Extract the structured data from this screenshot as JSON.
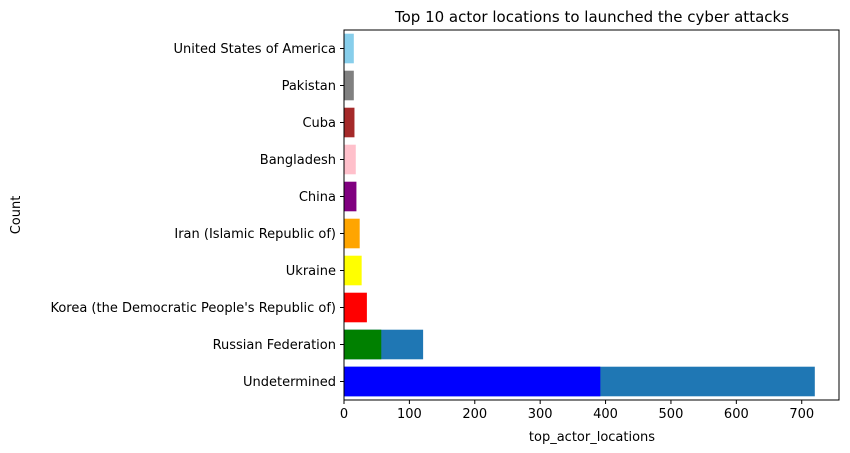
{
  "chart_data": {
    "type": "bar",
    "orientation": "horizontal",
    "title": "Top 10 actor locations to launched the cyber attacks",
    "xlabel": "top_actor_locations",
    "ylabel": "Count",
    "categories": [
      "Undetermined",
      "Russian Federation",
      "Korea (the Democratic People's Republic of)",
      "Ukraine",
      "Iran (Islamic Republic of)",
      "China",
      "Bangladesh",
      "Cuba",
      "Pakistan",
      "United States of America"
    ],
    "series": [
      {
        "values": [
          720,
          121,
          null,
          null,
          null,
          null,
          null,
          null,
          null,
          null
        ],
        "color": "#1f77b4"
      },
      {
        "values": [
          392,
          57,
          35,
          27,
          24,
          19,
          18,
          16,
          15,
          15
        ],
        "colors": [
          "#0000ff",
          "#008000",
          "#ff0000",
          "#ffff00",
          "#ffa500",
          "#800080",
          "#ffc0cb",
          "#a52a2a",
          "#808080",
          "#87ceeb"
        ]
      }
    ],
    "xlim": [
      0,
      757
    ],
    "xticks": [
      0,
      100,
      200,
      300,
      400,
      500,
      600,
      700
    ],
    "grid": false
  }
}
